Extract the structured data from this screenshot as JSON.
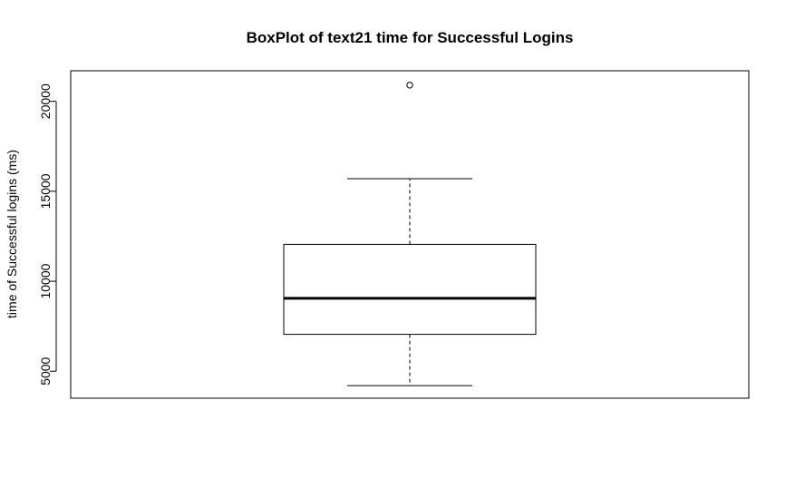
{
  "chart_data": {
    "type": "box",
    "title": "BoxPlot of text21 time for Successful Logins",
    "xlabel": "",
    "ylabel": "time of Successful logins (ms)",
    "ylim": [
      3500,
      21700
    ],
    "yticks": [
      5000,
      10000,
      15000,
      20000
    ],
    "ytick_labels": [
      "5000",
      "10000",
      "15000",
      "20000"
    ],
    "grid": false,
    "series": [
      {
        "whisker_low": 4200,
        "q1": 7050,
        "median": 9050,
        "q3": 12050,
        "whisker_high": 15700,
        "outliers": [
          20900
        ]
      }
    ]
  },
  "colors": {
    "line": "#000000",
    "box_fill": "#ffffff",
    "background": "#ffffff"
  }
}
